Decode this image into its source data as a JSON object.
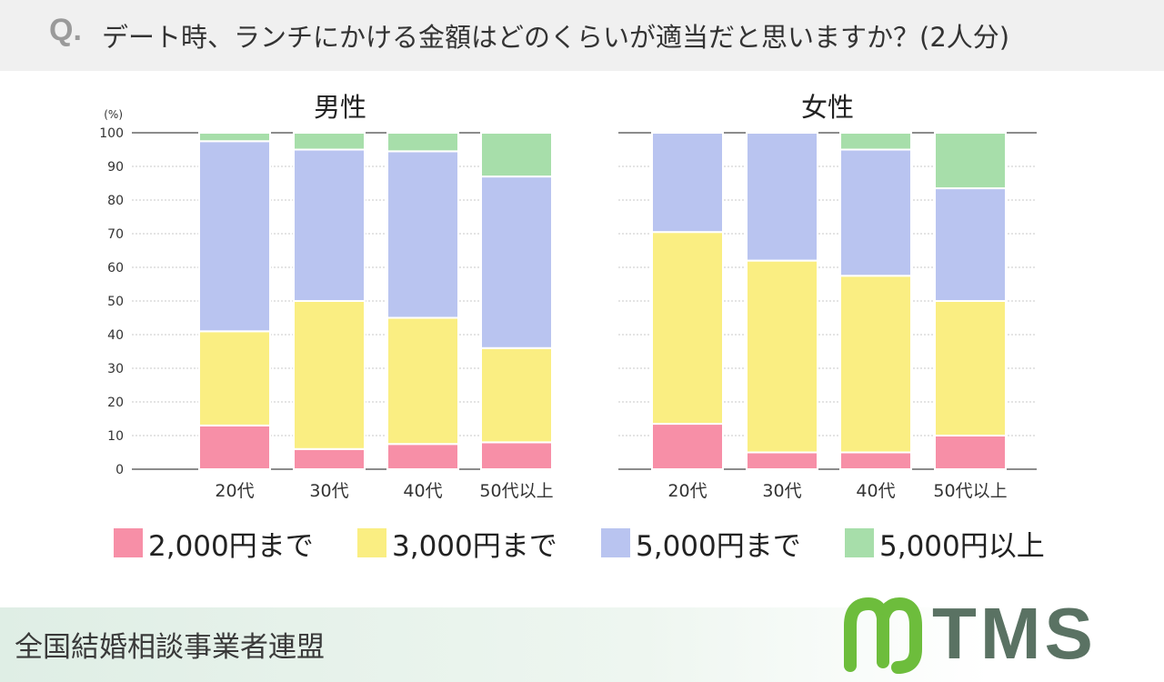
{
  "header": {
    "q_mark": "Q.",
    "question": "デート時、ランチにかける金額はどのくらいが適当だと思いますか？(2人分)"
  },
  "colors": {
    "upto_2000": "#f78fa7",
    "upto_3000": "#faee82",
    "upto_5000": "#b9c4f0",
    "over_5000": "#a7deaa",
    "axis": "#666666",
    "grid": "#c8c8c8"
  },
  "chart_data": [
    {
      "type": "bar",
      "stacked": true,
      "title": "男性",
      "ylabel": "(%)",
      "ylim": [
        0,
        100
      ],
      "yticks": [
        "0",
        "10",
        "20",
        "30",
        "40",
        "50",
        "60",
        "70",
        "80",
        "90",
        "100"
      ],
      "categories": [
        "20代",
        "30代",
        "40代",
        "50代以上"
      ],
      "series": [
        {
          "name": "2,000円まで",
          "values": [
            13,
            6,
            7.5,
            8
          ]
        },
        {
          "name": "3,000円まで",
          "values": [
            28,
            44,
            37.5,
            28
          ]
        },
        {
          "name": "5,000円まで",
          "values": [
            56.5,
            45,
            49.5,
            51
          ]
        },
        {
          "name": "5,000円以上",
          "values": [
            2.5,
            5,
            5.5,
            13
          ]
        }
      ]
    },
    {
      "type": "bar",
      "stacked": true,
      "title": "女性",
      "ylim": [
        0,
        100
      ],
      "categories": [
        "20代",
        "30代",
        "40代",
        "50代以上"
      ],
      "series": [
        {
          "name": "2,000円まで",
          "values": [
            13.5,
            5,
            5,
            10
          ]
        },
        {
          "name": "3,000円まで",
          "values": [
            57,
            57,
            52.5,
            40
          ]
        },
        {
          "name": "5,000円まで",
          "values": [
            29.5,
            38,
            37.5,
            33.5
          ]
        },
        {
          "name": "5,000円以上",
          "values": [
            0,
            0,
            5,
            16.5
          ]
        }
      ]
    }
  ],
  "legend": [
    {
      "label": "2,000円まで"
    },
    {
      "label": "3,000円まで"
    },
    {
      "label": "5,000円まで"
    },
    {
      "label": "5,000円以上"
    }
  ],
  "footer": {
    "organization": "全国結婚相談事業者連盟",
    "logo_text": "TMS"
  }
}
